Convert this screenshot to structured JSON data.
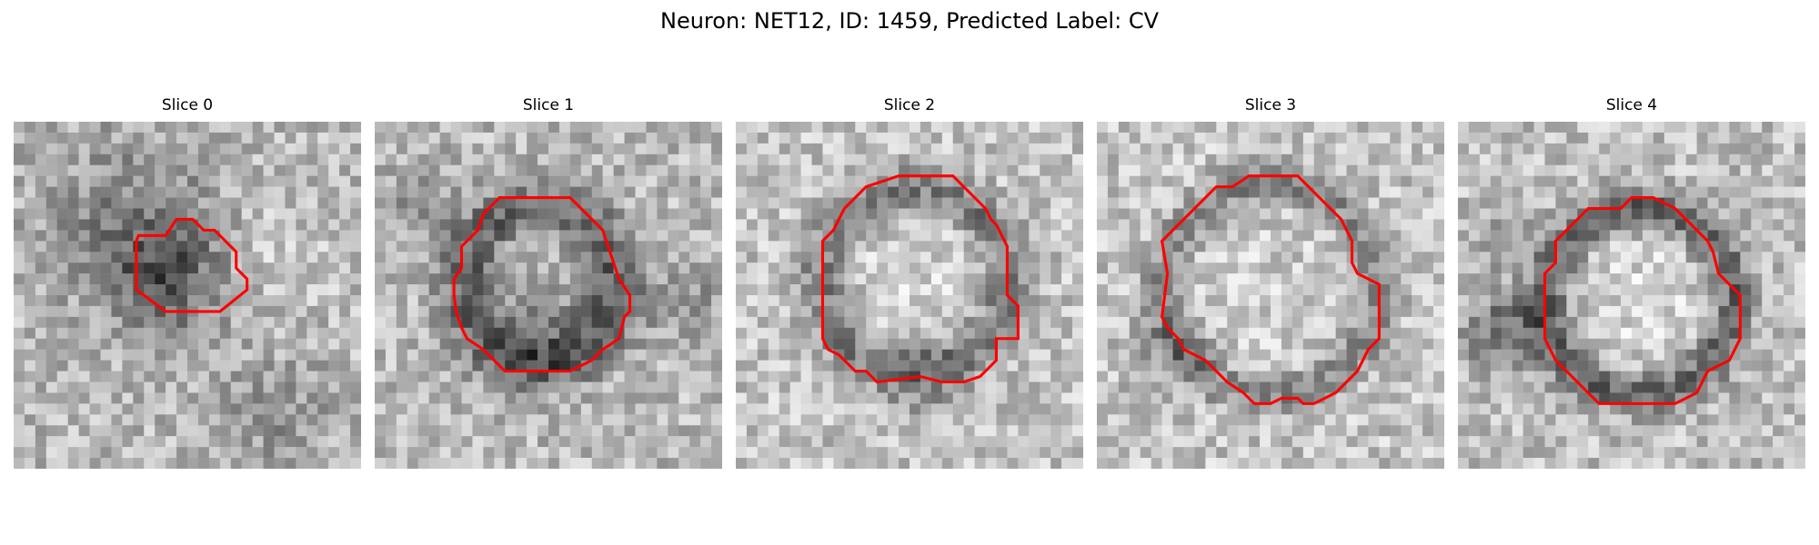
{
  "figure": {
    "title": "Neuron: NET12, ID: 1459, Predicted Label: CV"
  },
  "slices": [
    {
      "label": "Slice 0"
    },
    {
      "label": "Slice 1"
    },
    {
      "label": "Slice 2"
    },
    {
      "label": "Slice 3"
    },
    {
      "label": "Slice 4"
    }
  ],
  "colors": {
    "contour": "#ff0000",
    "background": "#ffffff"
  }
}
